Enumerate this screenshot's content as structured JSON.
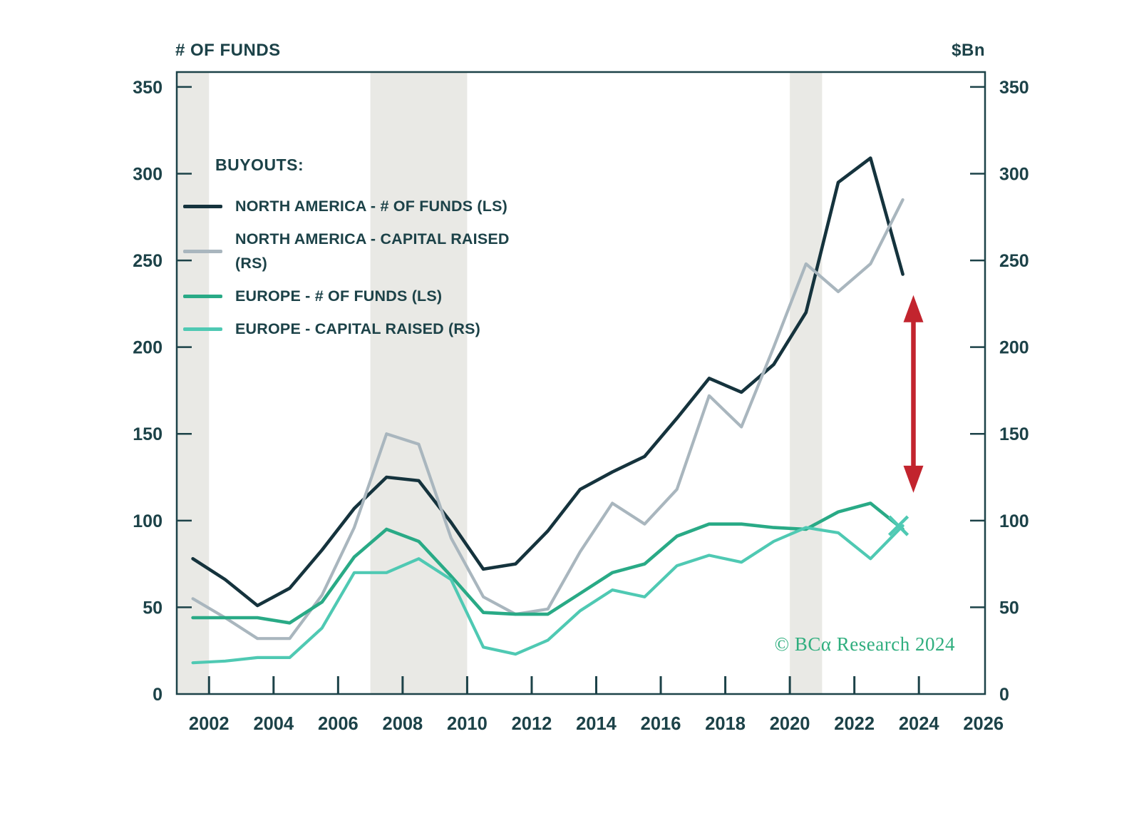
{
  "header": {
    "left_axis_title": "# OF FUNDS",
    "right_axis_title": "$Bn"
  },
  "legend": {
    "title": "BUYOUTS:"
  },
  "footer": {
    "copyright": "© BCα Research 2024"
  },
  "colors": {
    "axis": "#1c4248",
    "recession_band": "#e9e9e5",
    "background": "#ffffff",
    "copyright_green": "#2fae7e"
  },
  "chart_data": {
    "type": "line",
    "title": "BUYOUTS:",
    "left_axis_title": "# OF FUNDS",
    "right_axis_title": "$Bn",
    "xlim": [
      2001,
      2026.05
    ],
    "ylim": [
      0,
      358.6
    ],
    "x_plot_offset": 0.5,
    "grid": false,
    "legend_position": "upper-left-inside",
    "y_ticks": [
      0,
      50,
      100,
      150,
      200,
      250,
      300,
      350
    ],
    "x_ticks": [
      2002,
      2004,
      2006,
      2008,
      2010,
      2012,
      2014,
      2016,
      2018,
      2020,
      2022,
      2024,
      2026
    ],
    "x": [
      2001,
      2002,
      2003,
      2004,
      2005,
      2006,
      2007,
      2008,
      2009,
      2010,
      2011,
      2012,
      2013,
      2014,
      2015,
      2016,
      2017,
      2018,
      2019,
      2020,
      2021,
      2022,
      2023
    ],
    "series": [
      {
        "name": "NORTH AMERICA - # OF FUNDS (LS)",
        "axis": "left",
        "color": "#15333d",
        "stroke_width": 4.6,
        "values": [
          78,
          66,
          51,
          61,
          83,
          107,
          125,
          123,
          99,
          72,
          75,
          94,
          118,
          128,
          137,
          159,
          182,
          174,
          190,
          220,
          295,
          309,
          242
        ]
      },
      {
        "name": "NORTH AMERICA - CAPITAL RAISED (RS)",
        "axis": "right",
        "color": "#a9b6be",
        "stroke_width": 4.2,
        "values": [
          55,
          44,
          32,
          32,
          57,
          96,
          150,
          144,
          90,
          56,
          46,
          49,
          82,
          110,
          98,
          118,
          172,
          154,
          200,
          248,
          232,
          248,
          285
        ]
      },
      {
        "name": "EUROPE - # OF FUNDS (LS)",
        "axis": "left",
        "color": "#29aa86",
        "stroke_width": 4.6,
        "values": [
          44,
          44,
          44,
          41,
          53,
          79,
          95,
          88,
          68,
          47,
          46,
          46,
          58,
          70,
          75,
          91,
          98,
          98,
          96,
          95,
          105,
          110,
          95
        ]
      },
      {
        "name": "EUROPE - CAPITAL RAISED (RS)",
        "axis": "right",
        "color": "#4fc9b3",
        "stroke_width": 4.2,
        "end_marker": "x",
        "values": [
          18,
          19,
          21,
          21,
          38,
          70,
          70,
          78,
          66,
          27,
          23,
          31,
          48,
          60,
          56,
          74,
          80,
          76,
          88,
          96,
          93,
          78,
          97
        ]
      }
    ],
    "recession_bands": [
      [
        2001,
        2002
      ],
      [
        2007,
        2010
      ],
      [
        2020,
        2021
      ]
    ],
    "annotation_arrow": {
      "x_year": 2023.83,
      "value_from": 116,
      "value_to": 230,
      "color": "#c2242e",
      "style": "double-headed-vertical"
    }
  }
}
